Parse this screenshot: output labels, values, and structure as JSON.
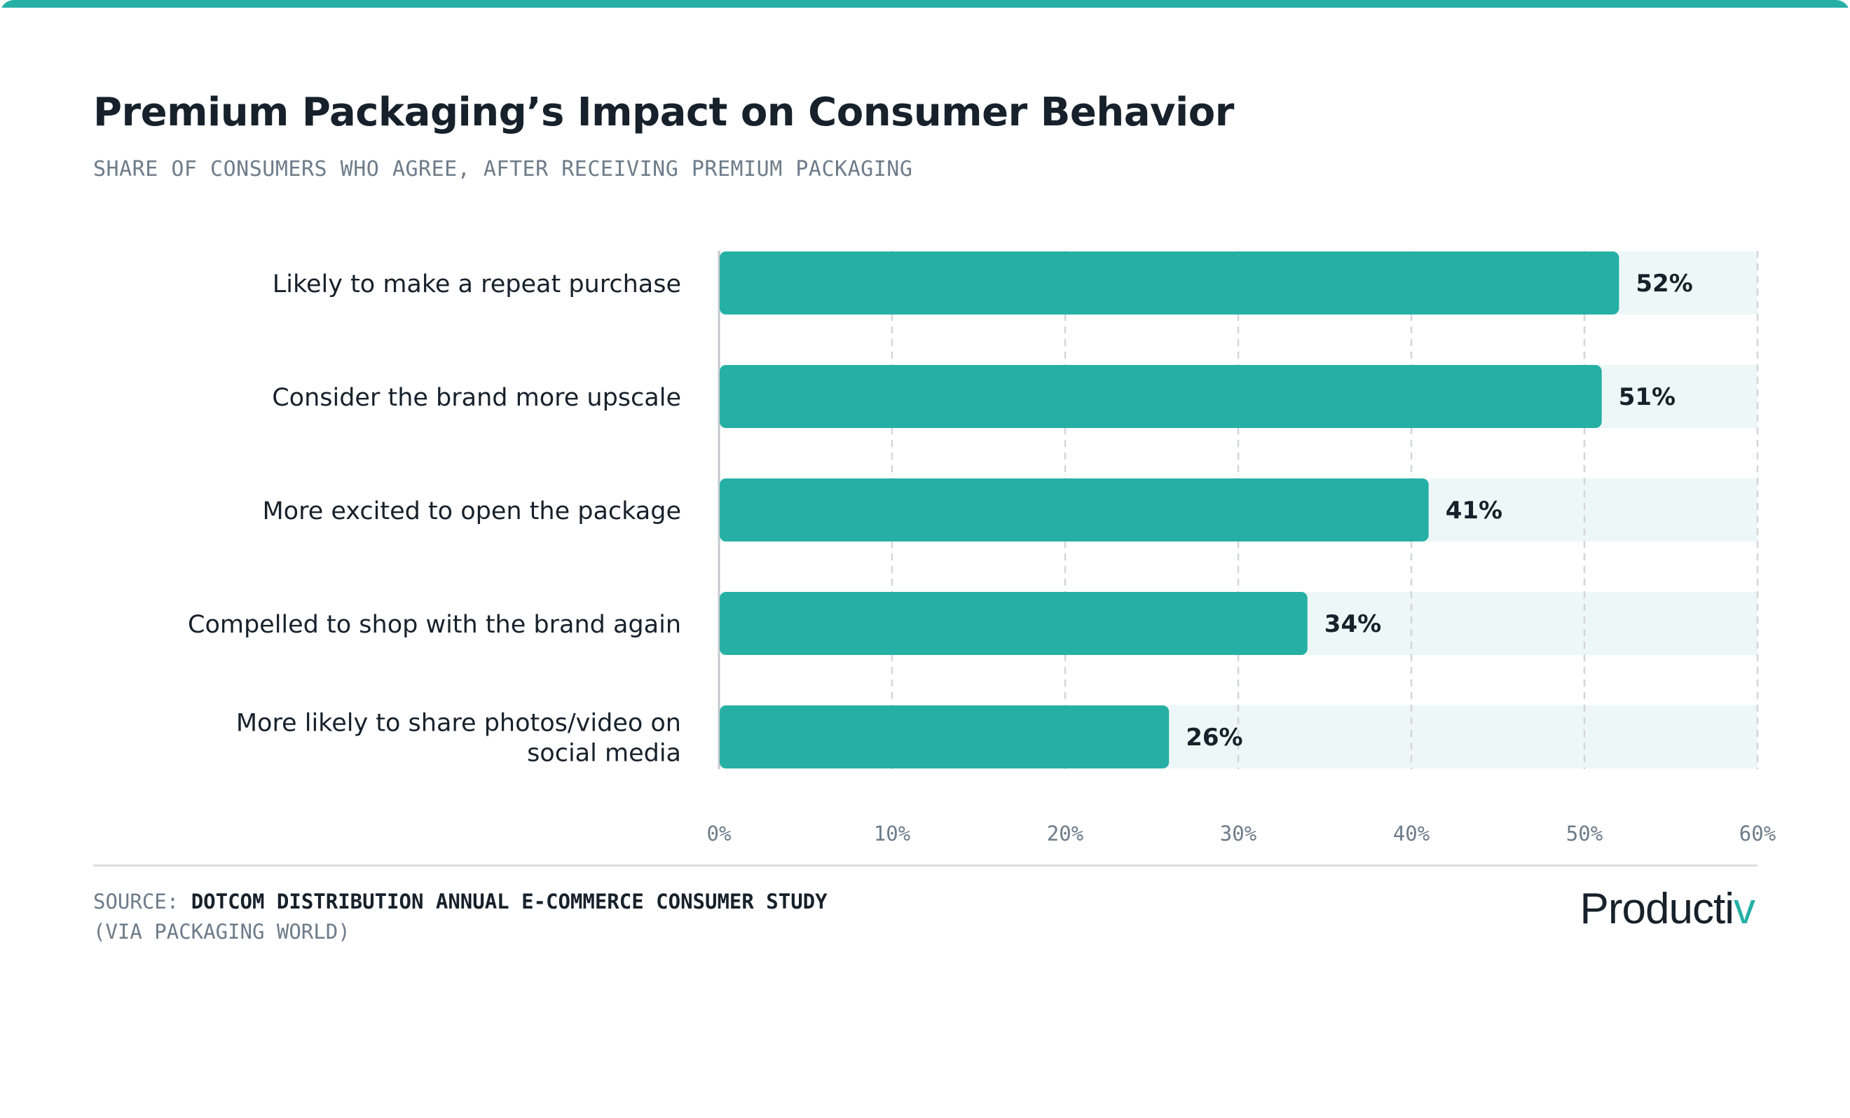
{
  "title": "Premium Packaging’s Impact on Consumer Behavior",
  "subtitle": "SHARE OF CONSUMERS WHO AGREE, AFTER RECEIVING PREMIUM PACKAGING",
  "source": {
    "prefix": "SOURCE:",
    "name": "DOTCOM DISTRIBUTION ANNUAL E-COMMERCE CONSUMER STUDY",
    "via": "(VIA PACKAGING WORLD)"
  },
  "logo": {
    "text_main": "Producti",
    "text_accent": "v"
  },
  "colors": {
    "accent": "#26b0a5",
    "track": "#edf7f7",
    "text": "#17212b",
    "muted": "#6e7c8a",
    "grid": "#d3d6d9"
  },
  "chart_data": {
    "type": "bar",
    "orientation": "horizontal",
    "categories": [
      [
        "Likely to make a repeat purchase"
      ],
      [
        "Consider the brand more upscale"
      ],
      [
        "More excited to open the package"
      ],
      [
        "Compelled to shop with the brand again"
      ],
      [
        "More likely to share photos/video on",
        "social media"
      ]
    ],
    "values": [
      52,
      51,
      41,
      34,
      26
    ],
    "value_labels": [
      "52%",
      "51%",
      "41%",
      "34%",
      "26%"
    ],
    "xlim": [
      0,
      60
    ],
    "xticks": [
      0,
      10,
      20,
      30,
      40,
      50,
      60
    ],
    "xtick_labels": [
      "0%",
      "10%",
      "20%",
      "30%",
      "40%",
      "50%",
      "60%"
    ],
    "grid": true,
    "legend": "none"
  }
}
